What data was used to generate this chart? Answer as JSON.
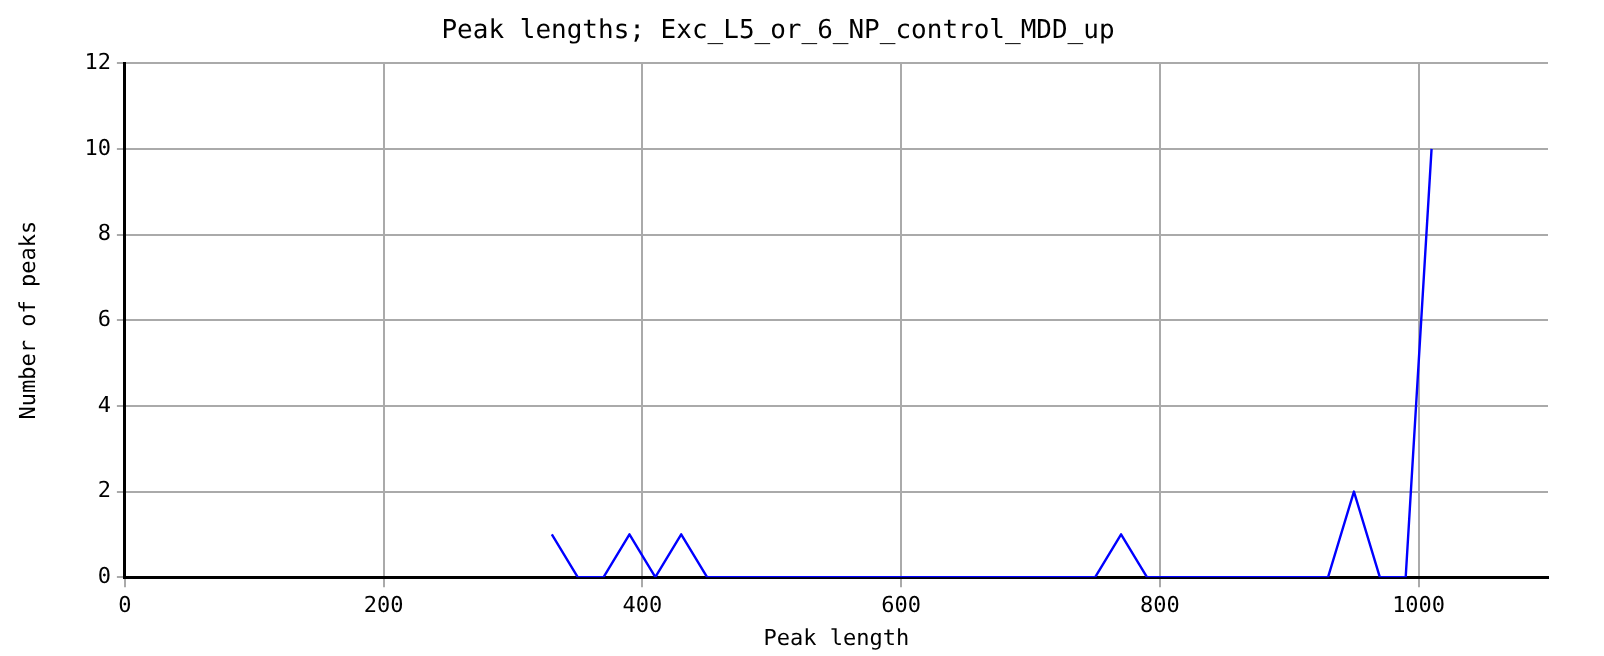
{
  "chart_data": {
    "type": "line",
    "title": "Peak lengths; Exc_L5_or_6_NP_control_MDD_up",
    "xlabel": "Peak length",
    "ylabel": "Number of peaks",
    "x": [
      330,
      350,
      370,
      390,
      410,
      430,
      450,
      750,
      770,
      790,
      930,
      950,
      970,
      990,
      1010
    ],
    "series": [
      {
        "color": "#0000ff",
        "values": [
          1,
          0,
          0,
          1,
          0,
          1,
          0,
          0,
          1,
          0,
          0,
          2,
          0,
          0,
          10
        ]
      }
    ],
    "xlim": [
      0,
      1100
    ],
    "xticks": [
      0,
      200,
      400,
      600,
      800,
      1000
    ],
    "ylim": [
      0,
      12
    ],
    "yticks": [
      0,
      2,
      4,
      6,
      8,
      10,
      12
    ],
    "grid": true,
    "legend": false,
    "marker": "none",
    "line_style": "solid"
  }
}
